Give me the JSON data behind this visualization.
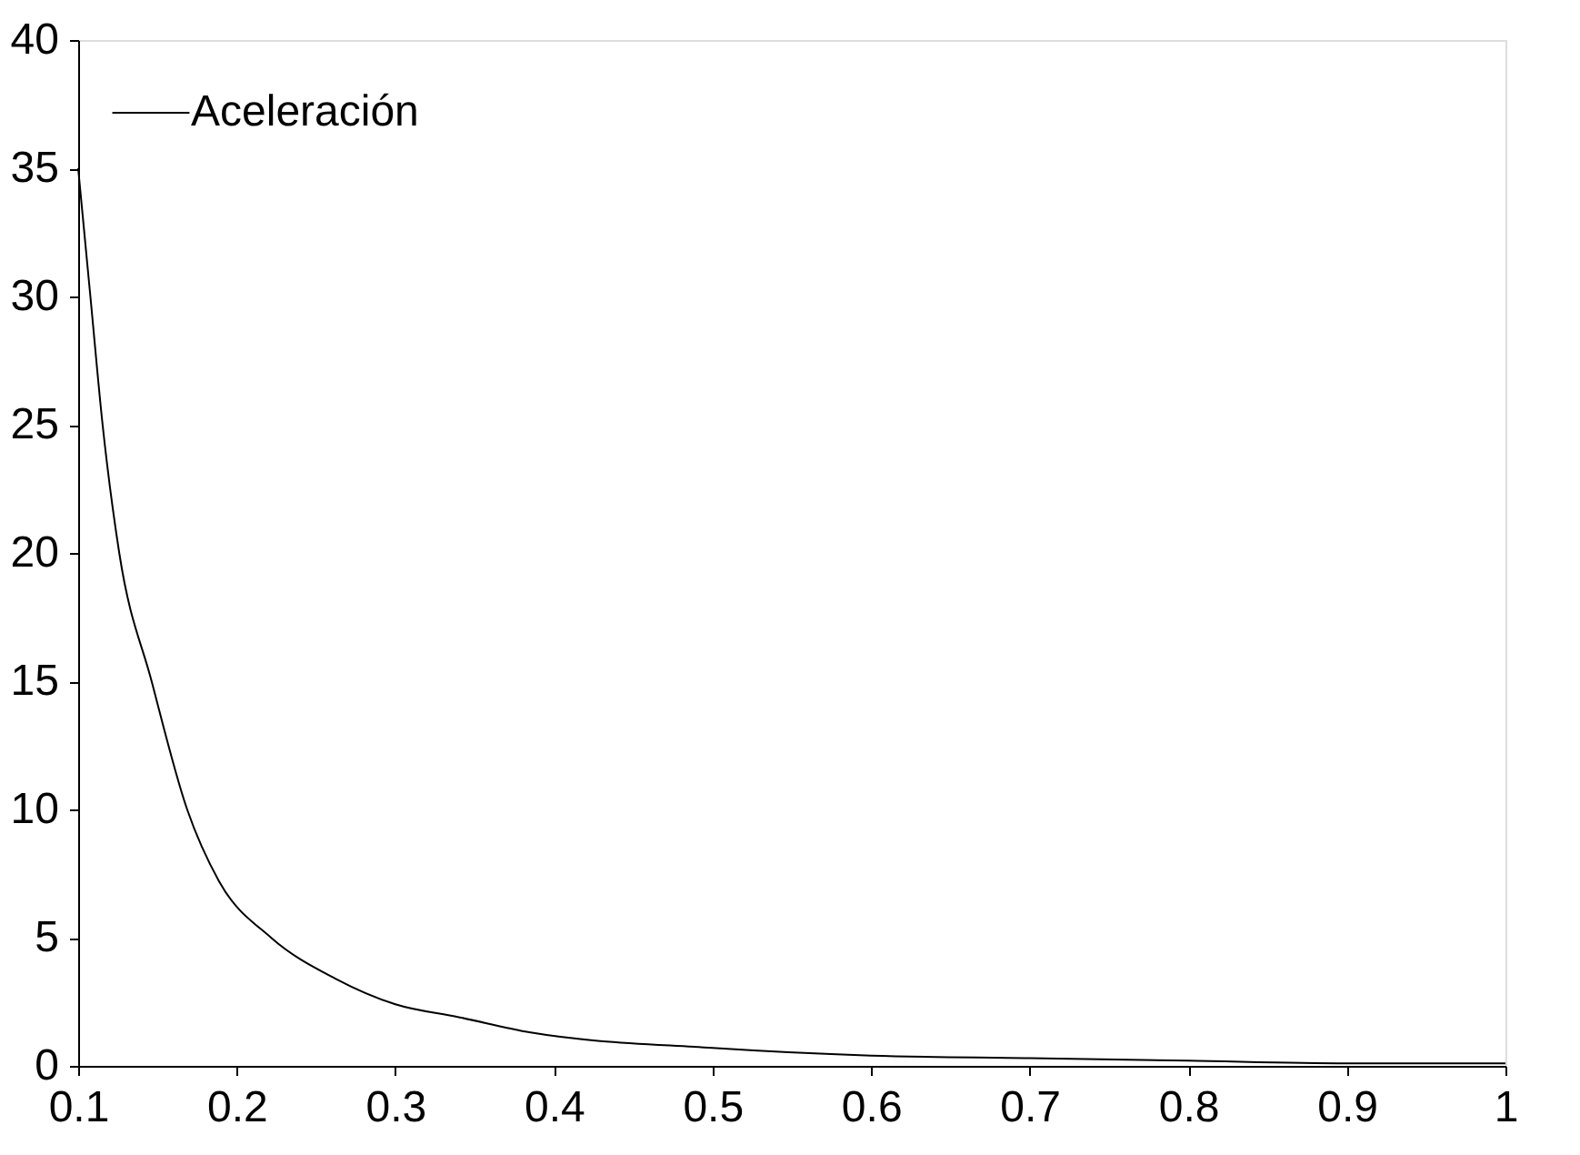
{
  "chart_data": {
    "type": "line",
    "x": [
      0.1,
      0.1077,
      0.1154,
      0.1259,
      0.1463,
      0.1687,
      0.1888,
      0.2216,
      0.2622,
      0.3,
      0.34,
      0.3853,
      0.5,
      0.6,
      0.7,
      0.8,
      0.9,
      1.0
    ],
    "series": [
      {
        "name": "Aceleración",
        "color": "#000000",
        "values": [
          35,
          30,
          25,
          20,
          15,
          10,
          7.2,
          5,
          3.4,
          2.4,
          1.9,
          1.3,
          0.7,
          0.4,
          0.3,
          0.2,
          0.1,
          0.1
        ]
      }
    ],
    "xlim": [
      0.1,
      1
    ],
    "ylim": [
      0,
      40
    ],
    "xticks": [
      0.1,
      0.2,
      0.3,
      0.4,
      0.5,
      0.6,
      0.7,
      0.8,
      0.9,
      1
    ],
    "yticks": [
      0,
      5,
      10,
      15,
      20,
      25,
      30,
      35,
      40
    ],
    "grid": false,
    "legend": "top left",
    "marker": "none",
    "line_style": "solid"
  }
}
